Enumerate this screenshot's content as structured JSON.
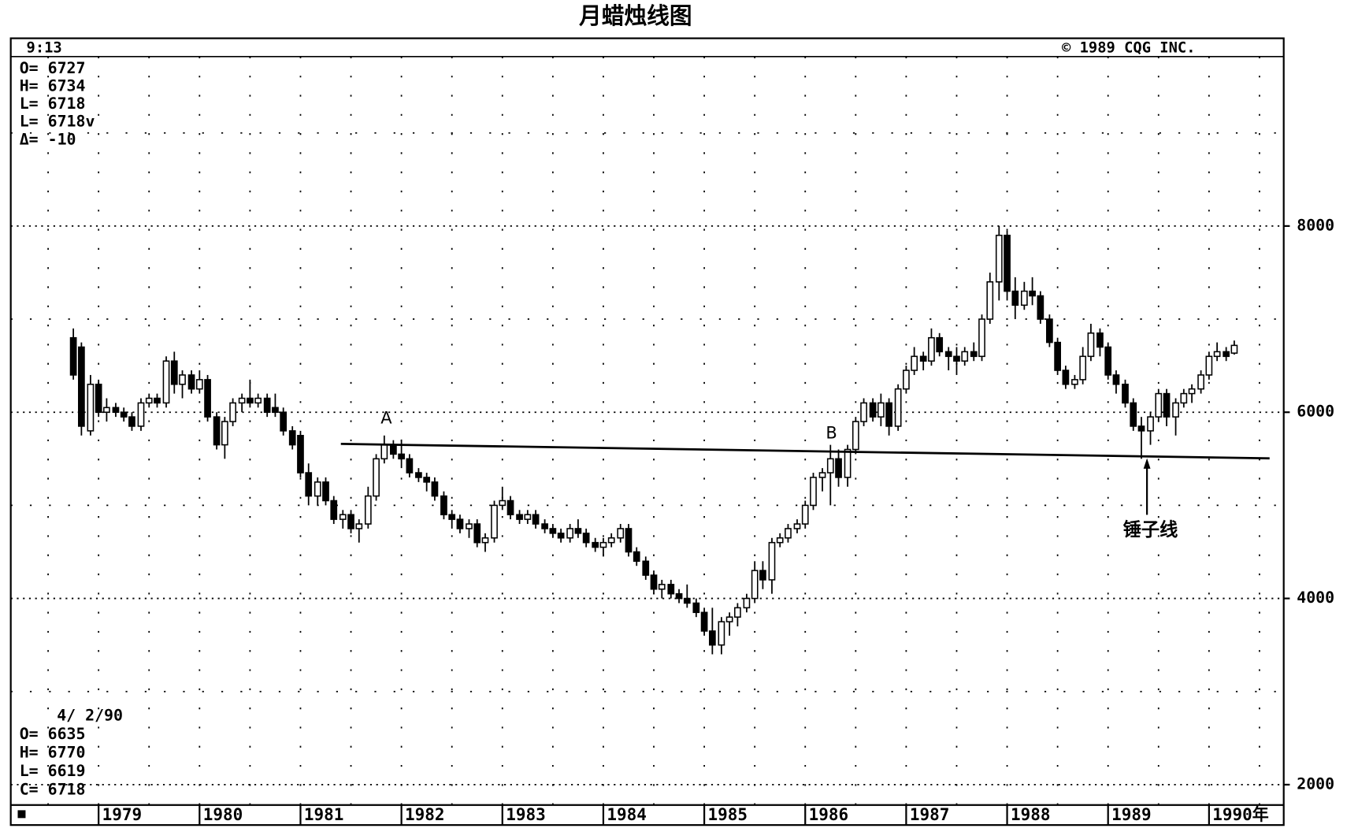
{
  "chart_data": {
    "type": "candlestick",
    "title": "月蜡烛线图",
    "time": "9:13",
    "copyright": "© 1989 CQG INC.",
    "info_top": [
      "O= 6727",
      "H= 6734",
      "L= 6718",
      "L= 6718v",
      "Δ= -10"
    ],
    "info_bottom": [
      "4/ 2/90",
      "O= 6635",
      "H= 6770",
      "L= 6619",
      "C= 6718"
    ],
    "x": [
      1978.75,
      1978.83,
      1978.92,
      1979,
      1979.08,
      1979.17,
      1979.25,
      1979.33,
      1979.42,
      1979.5,
      1979.58,
      1979.67,
      1979.75,
      1979.83,
      1979.92,
      1980,
      1980.08,
      1980.17,
      1980.25,
      1980.33,
      1980.42,
      1980.5,
      1980.58,
      1980.67,
      1980.75,
      1980.83,
      1980.92,
      1981,
      1981.08,
      1981.17,
      1981.25,
      1981.33,
      1981.42,
      1981.5,
      1981.58,
      1981.67,
      1981.75,
      1981.83,
      1981.92,
      1982,
      1982.08,
      1982.17,
      1982.25,
      1982.33,
      1982.42,
      1982.5,
      1982.58,
      1982.67,
      1982.75,
      1982.83,
      1982.92,
      1983,
      1983.08,
      1983.17,
      1983.25,
      1983.33,
      1983.42,
      1983.5,
      1983.58,
      1983.67,
      1983.75,
      1983.83,
      1983.92,
      1984,
      1984.08,
      1984.17,
      1984.25,
      1984.33,
      1984.42,
      1984.5,
      1984.58,
      1984.67,
      1984.75,
      1984.83,
      1984.92,
      1985,
      1985.08,
      1985.17,
      1985.25,
      1985.33,
      1985.42,
      1985.5,
      1985.58,
      1985.67,
      1985.75,
      1985.83,
      1985.92,
      1986,
      1986.08,
      1986.17,
      1986.25,
      1986.33,
      1986.42,
      1986.5,
      1986.58,
      1986.67,
      1986.75,
      1986.83,
      1986.92,
      1987,
      1987.08,
      1987.17,
      1987.25,
      1987.33,
      1987.42,
      1987.5,
      1987.58,
      1987.67,
      1987.75,
      1987.83,
      1987.92,
      1988,
      1988.08,
      1988.17,
      1988.25,
      1988.33,
      1988.42,
      1988.5,
      1988.58,
      1988.67,
      1988.75,
      1988.83,
      1988.92,
      1989,
      1989.08,
      1989.17,
      1989.25,
      1989.33,
      1989.42,
      1989.5,
      1989.58,
      1989.67,
      1989.75,
      1989.83,
      1989.92,
      1990,
      1990.08,
      1990.17,
      1990.25
    ],
    "open": [
      6800,
      6700,
      5800,
      6300,
      6000,
      6050,
      6000,
      5950,
      5850,
      6100,
      6150,
      6100,
      6550,
      6300,
      6400,
      6250,
      6350,
      5950,
      5650,
      5900,
      6100,
      6150,
      6100,
      6150,
      6050,
      6000,
      5800,
      5750,
      5350,
      5100,
      5250,
      5050,
      4850,
      4900,
      4750,
      4800,
      5100,
      5500,
      5650,
      5550,
      5500,
      5350,
      5300,
      5250,
      5100,
      4900,
      4850,
      4750,
      4800,
      4600,
      4650,
      5000,
      5050,
      4900,
      4850,
      4900,
      4800,
      4750,
      4700,
      4650,
      4750,
      4700,
      4600,
      4550,
      4600,
      4650,
      4750,
      4500,
      4400,
      4250,
      4100,
      4150,
      4050,
      4000,
      3950,
      3850,
      3650,
      3500,
      3750,
      3800,
      3900,
      4000,
      4300,
      4200,
      4600,
      4650,
      4750,
      4800,
      5000,
      5300,
      5350,
      5500,
      5300,
      5600,
      5900,
      6100,
      5950,
      6100,
      5850,
      6250,
      6450,
      6600,
      6550,
      6800,
      6650,
      6600,
      6550,
      6650,
      6600,
      7000,
      7400,
      7900,
      7300,
      7150,
      7300,
      7250,
      7000,
      6750,
      6450,
      6300,
      6350,
      6600,
      6850,
      6700,
      6400,
      6300,
      6100,
      5850,
      5800,
      5950,
      6200,
      5950,
      6100,
      6200,
      6250,
      6400,
      6600,
      6650,
      6635
    ],
    "high": [
      6900,
      6750,
      6400,
      6350,
      6150,
      6100,
      6050,
      6000,
      6150,
      6200,
      6200,
      6600,
      6650,
      6450,
      6450,
      6450,
      6400,
      6000,
      5950,
      6150,
      6200,
      6350,
      6200,
      6200,
      6200,
      6050,
      5850,
      5800,
      5450,
      5300,
      5300,
      5100,
      4950,
      4950,
      4850,
      5200,
      5550,
      5750,
      5700,
      5700,
      5550,
      5400,
      5350,
      5300,
      5150,
      4950,
      4900,
      4850,
      4850,
      4700,
      5050,
      5200,
      5100,
      4950,
      4950,
      4950,
      4850,
      4800,
      4750,
      4800,
      4850,
      4750,
      4650,
      4650,
      4700,
      4800,
      4800,
      4550,
      4450,
      4300,
      4200,
      4200,
      4100,
      4150,
      4000,
      3900,
      3900,
      3800,
      3850,
      3950,
      4050,
      4400,
      4400,
      4650,
      4700,
      4800,
      4850,
      5050,
      5350,
      5400,
      5650,
      5600,
      5650,
      5950,
      6150,
      6150,
      6200,
      6150,
      6300,
      6500,
      6700,
      6650,
      6900,
      6850,
      6700,
      6700,
      6700,
      6750,
      7050,
      7500,
      8000,
      7950,
      7450,
      7400,
      7450,
      7300,
      7050,
      6800,
      6500,
      6400,
      6700,
      6950,
      6900,
      6750,
      6450,
      6350,
      6150,
      5950,
      6000,
      6250,
      6250,
      6150,
      6250,
      6300,
      6450,
      6650,
      6750,
      6700,
      6770
    ],
    "low": [
      6350,
      5750,
      5750,
      5950,
      5900,
      5950,
      5900,
      5800,
      5800,
      6050,
      6050,
      6050,
      6200,
      6150,
      6200,
      6200,
      5900,
      5600,
      5500,
      5850,
      6000,
      6050,
      6050,
      5950,
      5950,
      5750,
      5600,
      5300,
      5000,
      5000,
      5000,
      4800,
      4750,
      4700,
      4600,
      4750,
      5050,
      5450,
      5500,
      5400,
      5300,
      5250,
      5150,
      5050,
      4850,
      4750,
      4700,
      4650,
      4550,
      4500,
      4600,
      4950,
      4850,
      4800,
      4800,
      4750,
      4700,
      4650,
      4600,
      4600,
      4650,
      4550,
      4500,
      4450,
      4550,
      4600,
      4450,
      4350,
      4200,
      4050,
      4000,
      4000,
      3950,
      3900,
      3800,
      3600,
      3400,
      3400,
      3600,
      3700,
      3850,
      3950,
      4100,
      4050,
      4550,
      4600,
      4700,
      4750,
      4950,
      5150,
      5000,
      5200,
      5200,
      5550,
      5850,
      5900,
      5850,
      5750,
      5800,
      6200,
      6400,
      6450,
      6500,
      6600,
      6450,
      6400,
      6500,
      6550,
      6550,
      6950,
      7200,
      7200,
      7000,
      7100,
      7150,
      6950,
      6700,
      6400,
      6250,
      6250,
      6300,
      6550,
      6600,
      6350,
      6200,
      6050,
      5800,
      5500,
      5650,
      5900,
      5850,
      5750,
      6050,
      6100,
      6200,
      6350,
      6550,
      6550,
      6619
    ],
    "close": [
      6400,
      5850,
      6300,
      6000,
      6050,
      6000,
      5950,
      5850,
      6100,
      6150,
      6100,
      6550,
      6300,
      6400,
      6250,
      6350,
      5950,
      5650,
      5900,
      6100,
      6150,
      6100,
      6150,
      6000,
      6000,
      5800,
      5650,
      5350,
      5100,
      5250,
      5050,
      4850,
      4900,
      4750,
      4800,
      5100,
      5500,
      5650,
      5550,
      5500,
      5350,
      5300,
      5250,
      5100,
      4900,
      4850,
      4750,
      4800,
      4600,
      4650,
      5000,
      5050,
      4900,
      4850,
      4900,
      4800,
      4750,
      4700,
      4650,
      4750,
      4700,
      4600,
      4550,
      4600,
      4650,
      4750,
      4500,
      4400,
      4250,
      4100,
      4150,
      4050,
      4000,
      3950,
      3850,
      3650,
      3500,
      3750,
      3800,
      3900,
      4000,
      4300,
      4200,
      4600,
      4650,
      4750,
      4800,
      5000,
      5300,
      5350,
      5500,
      5300,
      5600,
      5900,
      6100,
      5950,
      6100,
      5850,
      6250,
      6450,
      6600,
      6550,
      6800,
      6650,
      6600,
      6550,
      6650,
      6600,
      7000,
      7400,
      7900,
      7300,
      7150,
      7300,
      7250,
      7000,
      6750,
      6450,
      6300,
      6350,
      6600,
      6850,
      6700,
      6400,
      6300,
      6100,
      5850,
      5800,
      5950,
      6200,
      5950,
      6100,
      6200,
      6250,
      6400,
      6600,
      6650,
      6600,
      6718
    ],
    "up_color": "#ffffff",
    "down_color": "#000000",
    "xlim": [
      1978.13,
      1990.74
    ],
    "xticks": [
      1979,
      1980,
      1981,
      1982,
      1983,
      1984,
      1985,
      1986,
      1987,
      1988,
      1989,
      {
        "value": 1990,
        "label": "1990年"
      }
    ],
    "minor_xticks": [
      1978.5,
      1979.5,
      1980.5,
      1981.5,
      1982.5,
      1983.5,
      1984.5,
      1985.5,
      1986.5,
      1987.5,
      1988.5,
      1989.5,
      1990.5
    ],
    "ylim": [
      1800,
      9820
    ],
    "yticks": [
      2000,
      4000,
      6000,
      8000
    ],
    "minor_yticks": [
      3000,
      5000,
      7000,
      9000
    ],
    "grid": true,
    "trendline": {
      "x": [
        1981.4,
        1990.6
      ],
      "values": [
        5660,
        5505
      ]
    },
    "annotations": [
      {
        "text": "A",
        "x": 1981.85,
        "y": 5930
      },
      {
        "text": "B",
        "x": 1986.26,
        "y": 5770
      },
      {
        "text": "锤子线",
        "x": 1989.42,
        "y": 4730
      }
    ]
  }
}
